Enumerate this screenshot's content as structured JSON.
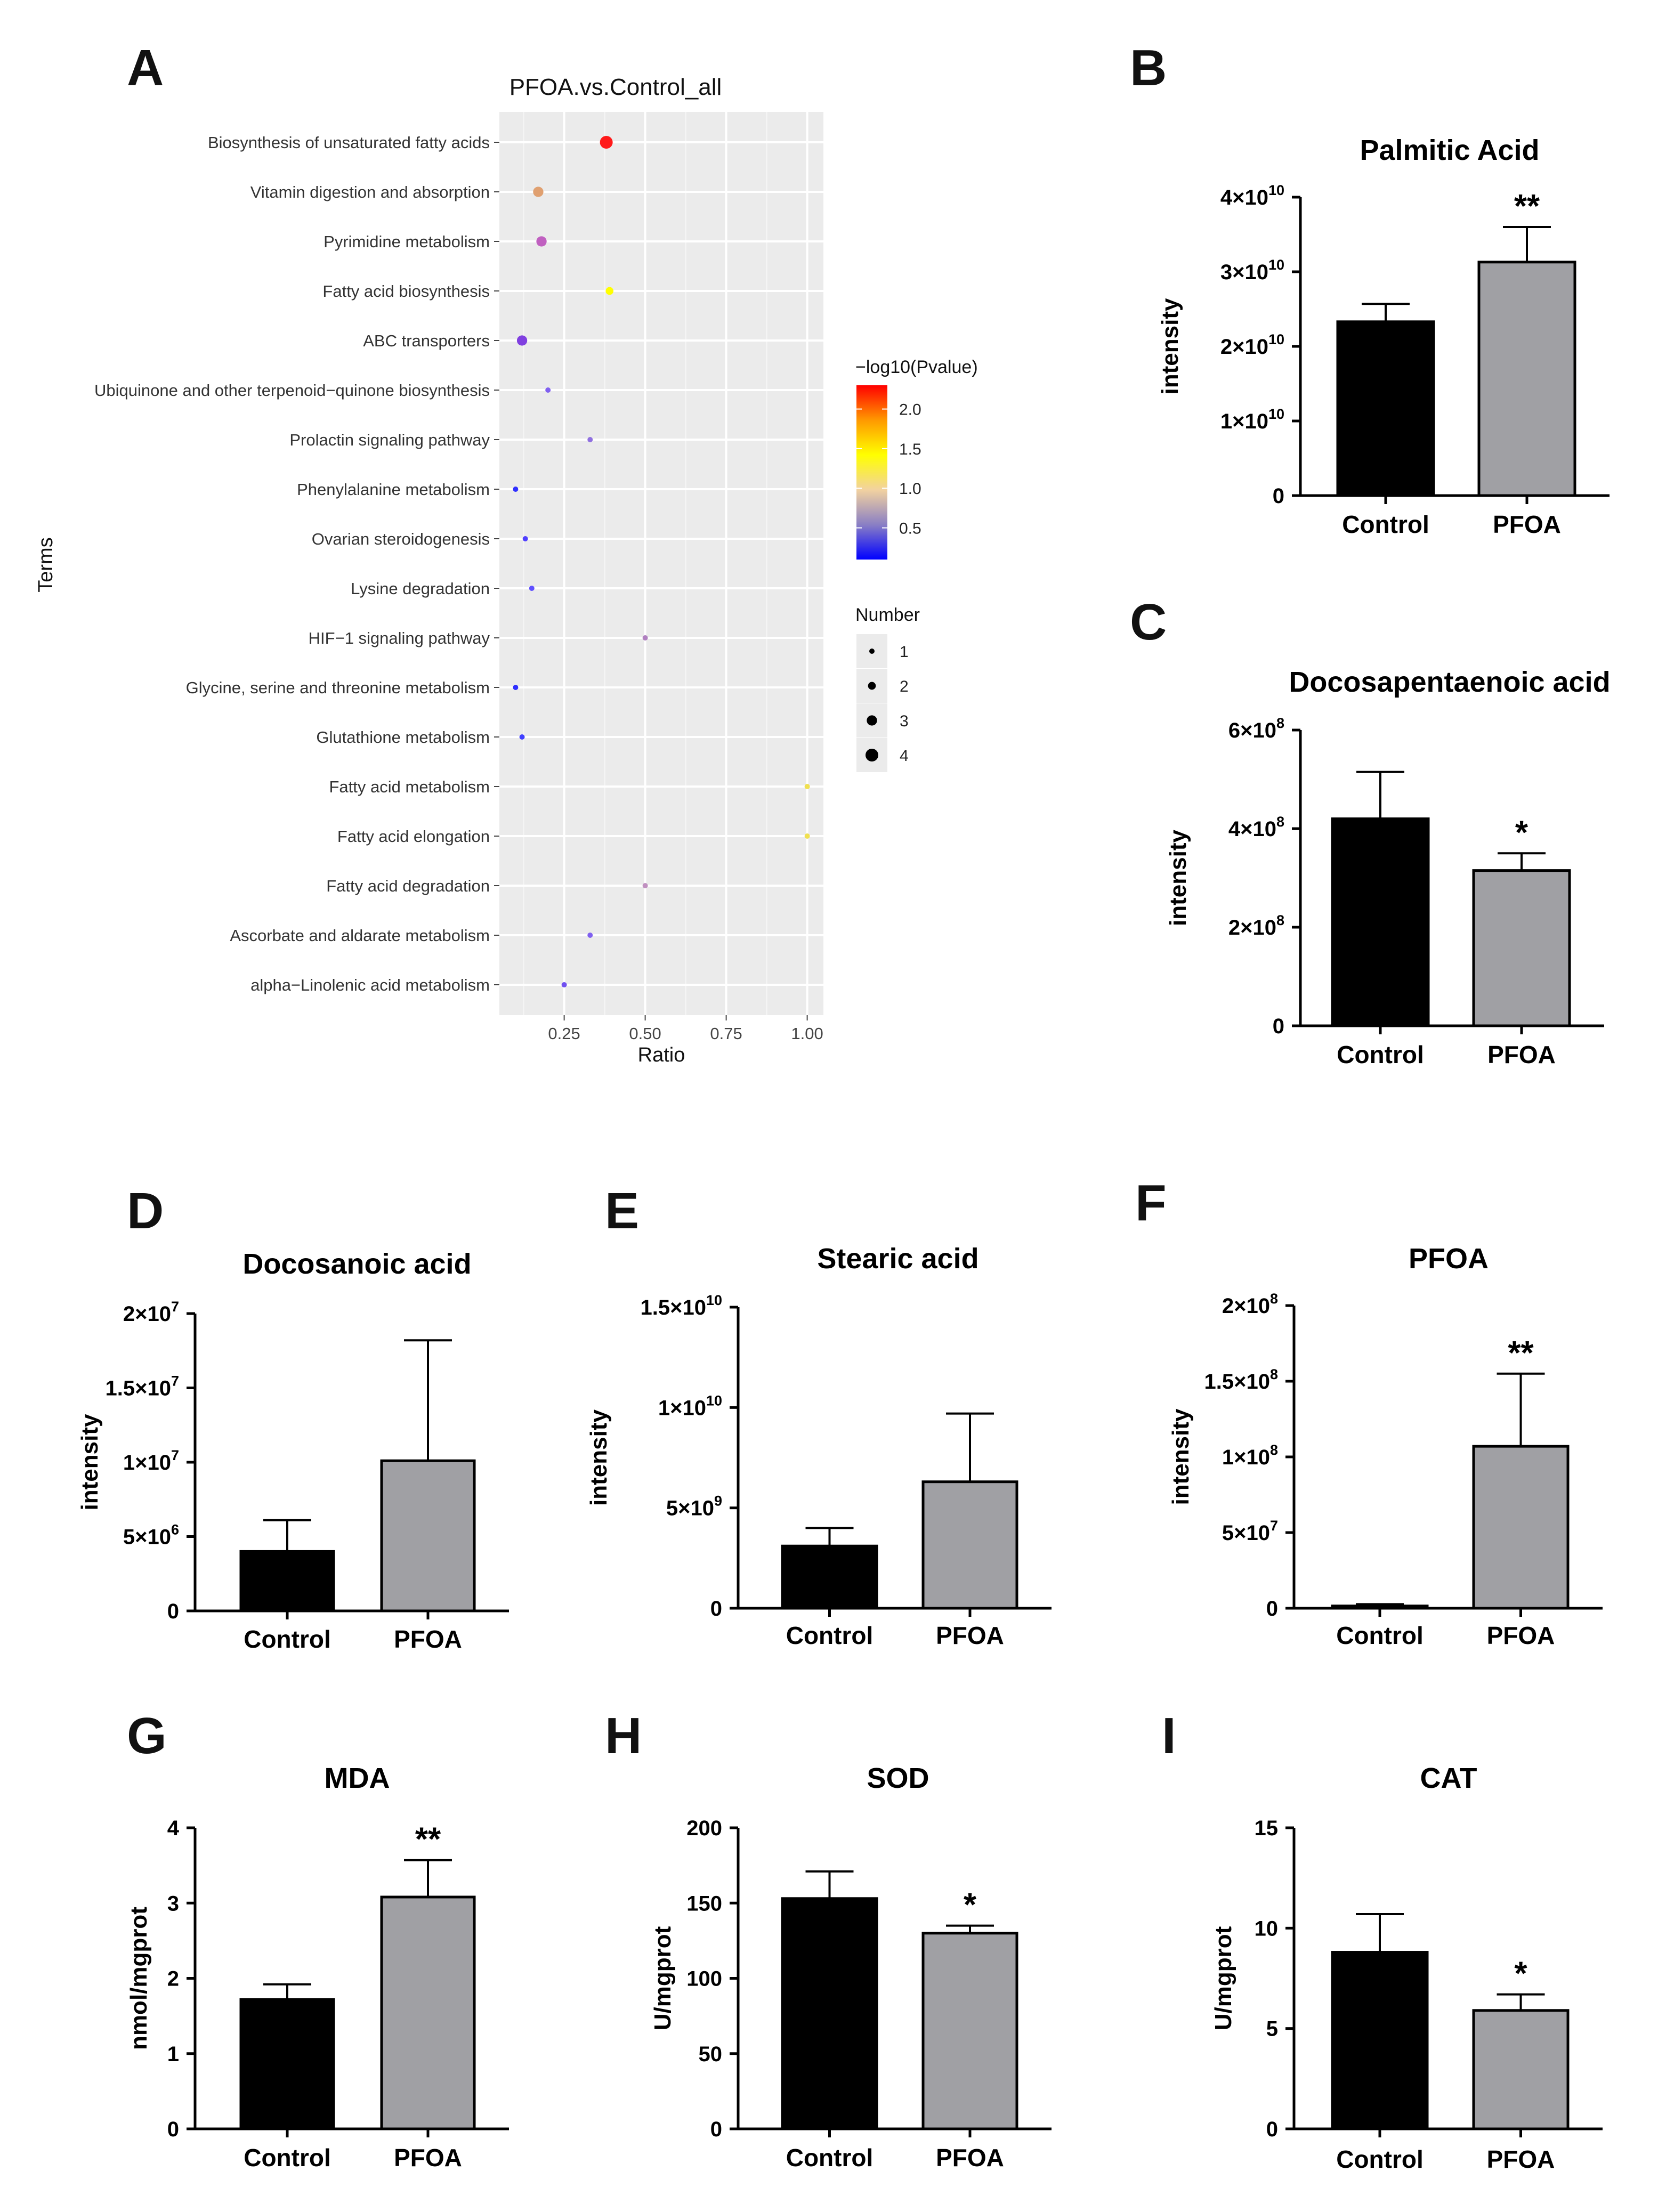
{
  "chart_data": [
    {
      "panel": "A",
      "type": "scatter",
      "title": "PFOA.vs.Control_all",
      "xlabel": "Ratio",
      "ylabel": "Terms",
      "xlim": [
        0.05,
        1.05
      ],
      "xticks": [
        0.25,
        0.5,
        0.75,
        1.0
      ],
      "xtick_labels": [
        "0.25",
        "0.50",
        "0.75",
        "1.00"
      ],
      "grid": true,
      "color_legend": {
        "title": "−log10(Pvalue)",
        "min": 0.1,
        "max": 2.3,
        "ticks": [
          "2.0",
          "1.5",
          "1.0",
          "0.5"
        ],
        "tick_values": [
          2.0,
          1.5,
          1.0,
          0.5
        ],
        "colors": [
          "#0000ff",
          "#8a7fc4",
          "#f2d2a0",
          "#ffff00",
          "#ff9900",
          "#ff0000"
        ]
      },
      "size_legend": {
        "title": "Number",
        "values": [
          1,
          2,
          3,
          4
        ],
        "labels": [
          "1",
          "2",
          "3",
          "4"
        ]
      },
      "points": [
        {
          "term": "Biosynthesis of unsaturated fatty acids",
          "ratio": 0.38,
          "number": 4,
          "color": "#ff1a1a"
        },
        {
          "term": "Vitamin digestion and absorption",
          "ratio": 0.17,
          "number": 3,
          "color": "#e0a070"
        },
        {
          "term": "Pyrimidine metabolism",
          "ratio": 0.18,
          "number": 3,
          "color": "#c060c0"
        },
        {
          "term": "Fatty acid biosynthesis",
          "ratio": 0.39,
          "number": 2,
          "color": "#ffff00"
        },
        {
          "term": "ABC transporters",
          "ratio": 0.12,
          "number": 3,
          "color": "#8040e0"
        },
        {
          "term": "Ubiquinone and other terpenoid−quinone biosynthesis",
          "ratio": 0.2,
          "number": 1,
          "color": "#8060f0"
        },
        {
          "term": "Prolactin signaling pathway",
          "ratio": 0.33,
          "number": 1,
          "color": "#9070e0"
        },
        {
          "term": "Phenylalanine metabolism",
          "ratio": 0.1,
          "number": 1,
          "color": "#3030ff"
        },
        {
          "term": "Ovarian steroidogenesis",
          "ratio": 0.13,
          "number": 1,
          "color": "#5040ff"
        },
        {
          "term": "Lysine degradation",
          "ratio": 0.15,
          "number": 1,
          "color": "#6050ff"
        },
        {
          "term": "HIF−1 signaling pathway",
          "ratio": 0.5,
          "number": 1,
          "color": "#b080c0"
        },
        {
          "term": "Glycine, serine and threonine metabolism",
          "ratio": 0.1,
          "number": 1,
          "color": "#3030ff"
        },
        {
          "term": "Glutathione metabolism",
          "ratio": 0.12,
          "number": 1,
          "color": "#4040ff"
        },
        {
          "term": "Fatty acid metabolism",
          "ratio": 1.0,
          "number": 1,
          "color": "#f0e050"
        },
        {
          "term": "Fatty acid elongation",
          "ratio": 1.0,
          "number": 1,
          "color": "#f0e050"
        },
        {
          "term": "Fatty acid degradation",
          "ratio": 0.5,
          "number": 1,
          "color": "#c090c0"
        },
        {
          "term": "Ascorbate and aldarate metabolism",
          "ratio": 0.33,
          "number": 1,
          "color": "#8060f0"
        },
        {
          "term": "alpha−Linolenic acid metabolism",
          "ratio": 0.25,
          "number": 1,
          "color": "#7050f0"
        }
      ]
    },
    {
      "panel": "B",
      "type": "bar",
      "title": "Palmitic Acid",
      "ylabel": "intensity",
      "categories": [
        "Control",
        "PFOA"
      ],
      "values": [
        23300000000.0,
        31300000000.0
      ],
      "errors": [
        2400000000.0,
        4700000000.0
      ],
      "colors": [
        "#000000",
        "#a0a0a4"
      ],
      "significance": [
        "",
        "**"
      ],
      "ylim": [
        0,
        40000000000.0
      ],
      "yticks": [
        0,
        10000000000.0,
        20000000000.0,
        30000000000.0,
        40000000000.0
      ],
      "ytick_labels": [
        {
          "base": "0",
          "exp": ""
        },
        {
          "base": "1×10",
          "exp": "10"
        },
        {
          "base": "2×10",
          "exp": "10"
        },
        {
          "base": "3×10",
          "exp": "10"
        },
        {
          "base": "4×10",
          "exp": "10"
        }
      ]
    },
    {
      "panel": "C",
      "type": "bar",
      "title": "Docosapentaenoic acid",
      "ylabel": "intensity",
      "categories": [
        "Control",
        "PFOA"
      ],
      "values": [
        420000000.0,
        315000000.0
      ],
      "errors": [
        95000000.0,
        35000000.0
      ],
      "colors": [
        "#000000",
        "#a0a0a4"
      ],
      "significance": [
        "",
        "*"
      ],
      "ylim": [
        0,
        600000000.0
      ],
      "yticks": [
        0,
        200000000.0,
        400000000.0,
        600000000.0
      ],
      "ytick_labels": [
        {
          "base": "0",
          "exp": ""
        },
        {
          "base": "2×10",
          "exp": "8"
        },
        {
          "base": "4×10",
          "exp": "8"
        },
        {
          "base": "6×10",
          "exp": "8"
        }
      ]
    },
    {
      "panel": "D",
      "type": "bar",
      "title": "Docosanoic acid",
      "ylabel": "intensity",
      "categories": [
        "Control",
        "PFOA"
      ],
      "values": [
        4000000.0,
        10100000.0
      ],
      "errors": [
        2100000.0,
        8100000.0
      ],
      "colors": [
        "#000000",
        "#a0a0a4"
      ],
      "significance": [
        "",
        ""
      ],
      "ylim": [
        0,
        20000000.0
      ],
      "yticks": [
        0,
        5000000.0,
        10000000.0,
        15000000.0,
        20000000.0
      ],
      "ytick_labels": [
        {
          "base": "0",
          "exp": ""
        },
        {
          "base": "5×10",
          "exp": "6"
        },
        {
          "base": "1×10",
          "exp": "7"
        },
        {
          "base": "1.5×10",
          "exp": "7"
        },
        {
          "base": "2×10",
          "exp": "7"
        }
      ]
    },
    {
      "panel": "E",
      "type": "bar",
      "title": "Stearic acid",
      "ylabel": "intensity",
      "categories": [
        "Control",
        "PFOA"
      ],
      "values": [
        3100000000.0,
        6300000000.0
      ],
      "errors": [
        900000000.0,
        3400000000.0
      ],
      "colors": [
        "#000000",
        "#a0a0a4"
      ],
      "significance": [
        "",
        ""
      ],
      "ylim": [
        0,
        15000000000.0
      ],
      "yticks": [
        0,
        5000000000.0,
        10000000000.0,
        15000000000.0
      ],
      "ytick_labels": [
        {
          "base": "0",
          "exp": ""
        },
        {
          "base": "5×10",
          "exp": "9"
        },
        {
          "base": "1×10",
          "exp": "10"
        },
        {
          "base": "1.5×10",
          "exp": "10"
        }
      ]
    },
    {
      "panel": "F",
      "type": "bar",
      "title": "PFOA",
      "ylabel": "intensity",
      "categories": [
        "Control",
        "PFOA"
      ],
      "values": [
        1500000.0,
        107000000.0
      ],
      "errors": [
        1200000.0,
        48000000.0
      ],
      "colors": [
        "#000000",
        "#a0a0a4"
      ],
      "significance": [
        "",
        "**"
      ],
      "ylim": [
        0,
        200000000.0
      ],
      "yticks": [
        0,
        50000000.0,
        100000000.0,
        150000000.0,
        200000000.0
      ],
      "ytick_labels": [
        {
          "base": "0",
          "exp": ""
        },
        {
          "base": "5×10",
          "exp": "7"
        },
        {
          "base": "1×10",
          "exp": "8"
        },
        {
          "base": "1.5×10",
          "exp": "8"
        },
        {
          "base": "2×10",
          "exp": "8"
        }
      ]
    },
    {
      "panel": "G",
      "type": "bar",
      "title": "MDA",
      "ylabel": "nmol/mgprot",
      "categories": [
        "Control",
        "PFOA"
      ],
      "values": [
        1.72,
        3.08
      ],
      "errors": [
        0.2,
        0.49
      ],
      "colors": [
        "#000000",
        "#a0a0a4"
      ],
      "significance": [
        "",
        "**"
      ],
      "ylim": [
        0,
        4
      ],
      "yticks": [
        0,
        1,
        2,
        3,
        4
      ],
      "ytick_labels": [
        {
          "base": "0",
          "exp": ""
        },
        {
          "base": "1",
          "exp": ""
        },
        {
          "base": "2",
          "exp": ""
        },
        {
          "base": "3",
          "exp": ""
        },
        {
          "base": "4",
          "exp": ""
        }
      ]
    },
    {
      "panel": "H",
      "type": "bar",
      "title": "SOD",
      "ylabel": "U/mgprot",
      "categories": [
        "Control",
        "PFOA"
      ],
      "values": [
        153,
        130
      ],
      "errors": [
        18,
        5
      ],
      "colors": [
        "#000000",
        "#a0a0a4"
      ],
      "significance": [
        "",
        "*"
      ],
      "ylim": [
        0,
        200
      ],
      "yticks": [
        0,
        50,
        100,
        150,
        200
      ],
      "ytick_labels": [
        {
          "base": "0",
          "exp": ""
        },
        {
          "base": "50",
          "exp": ""
        },
        {
          "base": "100",
          "exp": ""
        },
        {
          "base": "150",
          "exp": ""
        },
        {
          "base": "200",
          "exp": ""
        }
      ]
    },
    {
      "panel": "I",
      "type": "bar",
      "title": "CAT",
      "ylabel": "U/mgprot",
      "categories": [
        "Control",
        "PFOA"
      ],
      "values": [
        8.8,
        5.9
      ],
      "errors": [
        1.9,
        0.8
      ],
      "colors": [
        "#000000",
        "#a0a0a4"
      ],
      "significance": [
        "",
        "*"
      ],
      "ylim": [
        0,
        15
      ],
      "yticks": [
        0,
        5,
        10,
        15
      ],
      "ytick_labels": [
        {
          "base": "0",
          "exp": ""
        },
        {
          "base": "5",
          "exp": ""
        },
        {
          "base": "10",
          "exp": ""
        },
        {
          "base": "15",
          "exp": ""
        }
      ]
    }
  ]
}
